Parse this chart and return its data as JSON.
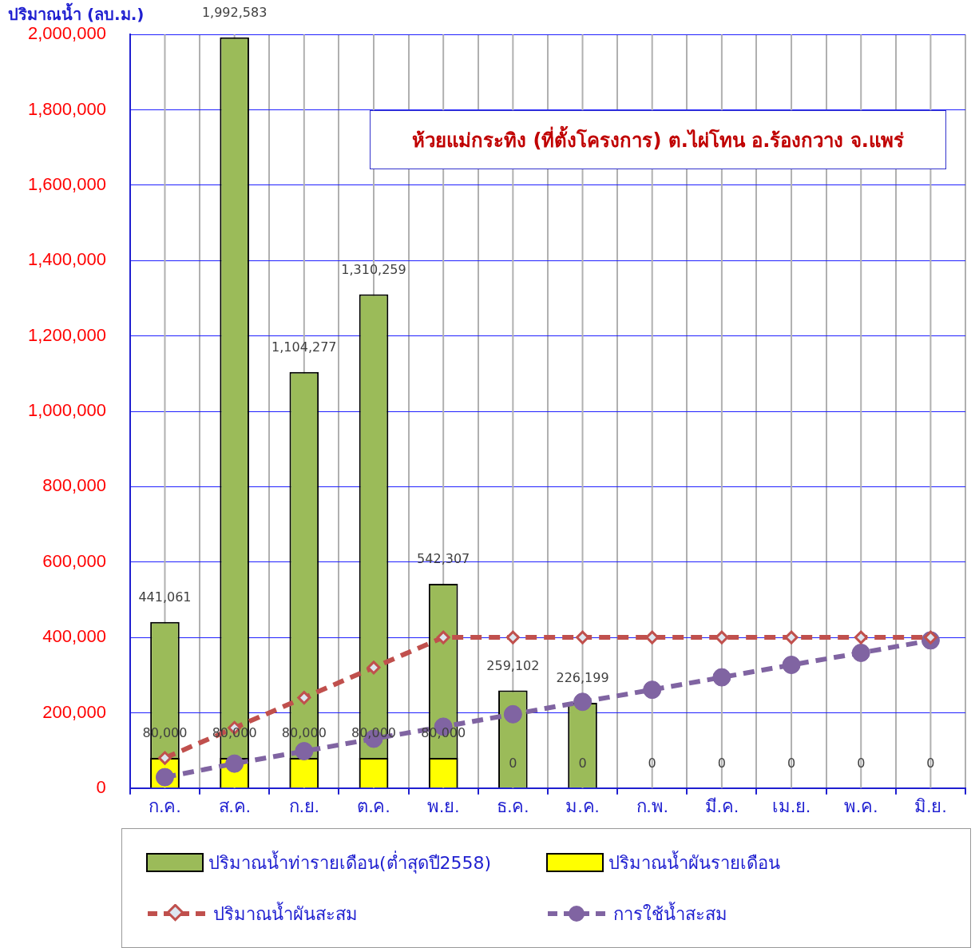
{
  "chart_data": {
    "type": "bar",
    "ylabel": "ปริมาณน้ำ (ลบ.ม.)",
    "categories": [
      "ก.ค.",
      "ส.ค.",
      "ก.ย.",
      "ต.ค.",
      "พ.ย.",
      "ธ.ค.",
      "ม.ค.",
      "ก.พ.",
      "มี.ค.",
      "เม.ย.",
      "พ.ค.",
      "มิ.ย."
    ],
    "series": [
      {
        "name": "ปริมาณน้ำท่ารายเดือน(ต่ำสุดปี2558)",
        "color": "#9bbb59",
        "values": [
          441061,
          1992583,
          1104277,
          1310259,
          542307,
          259102,
          226199,
          null,
          null,
          null,
          null,
          null
        ],
        "value_labels": [
          "441,061",
          "1,992,583",
          "1,104,277",
          "1,310,259",
          "542,307",
          "259,102",
          "226,199",
          null,
          null,
          null,
          null,
          null
        ]
      },
      {
        "name": "ปริมาณน้ำผันรายเดือน",
        "color": "#ffff00",
        "values": [
          80000,
          80000,
          80000,
          80000,
          80000,
          0,
          0,
          0,
          0,
          0,
          0,
          0
        ],
        "value_labels": [
          "80,000",
          "80,000",
          "80,000",
          "80,000",
          "80,000",
          "0",
          "0",
          "0",
          "0",
          "0",
          "0",
          "0"
        ]
      },
      {
        "name": "ปริมาณน้ำผันสะสม",
        "type": "line",
        "color": "#c0504d",
        "marker": "diamond",
        "line_style": "dashed",
        "values": [
          80000,
          160000,
          240000,
          320000,
          400000,
          400000,
          400000,
          400000,
          400000,
          400000,
          400000,
          400000
        ]
      },
      {
        "name": "การใช้น้ำสะสม",
        "type": "line",
        "color": "#8064a2",
        "marker": "circle",
        "line_style": "dashed",
        "values": [
          29000,
          65000,
          98000,
          131000,
          163000,
          196000,
          229000,
          261000,
          294000,
          327000,
          359000,
          392000
        ]
      }
    ],
    "ylim": [
      0,
      2000000
    ],
    "yticks": [
      {
        "value": 0,
        "label": "0"
      },
      {
        "value": 200000,
        "label": "200,000"
      },
      {
        "value": 400000,
        "label": "400,000"
      },
      {
        "value": 600000,
        "label": "600,000"
      },
      {
        "value": 800000,
        "label": "800,000"
      },
      {
        "value": 1000000,
        "label": "1,000,000"
      },
      {
        "value": 1200000,
        "label": "1,200,000"
      },
      {
        "value": 1400000,
        "label": "1,400,000"
      },
      {
        "value": 1600000,
        "label": "1,600,000"
      },
      {
        "value": 1800000,
        "label": "1,800,000"
      },
      {
        "value": 2000000,
        "label": "2,000,000"
      }
    ],
    "grid": true,
    "legend": "bottom",
    "annotations": [
      "ห้วยแม่กระทิง (ที่ตั้งโครงการ) ต.ไผ่โทน อ.ร้องกวาง จ.แพร่"
    ]
  }
}
